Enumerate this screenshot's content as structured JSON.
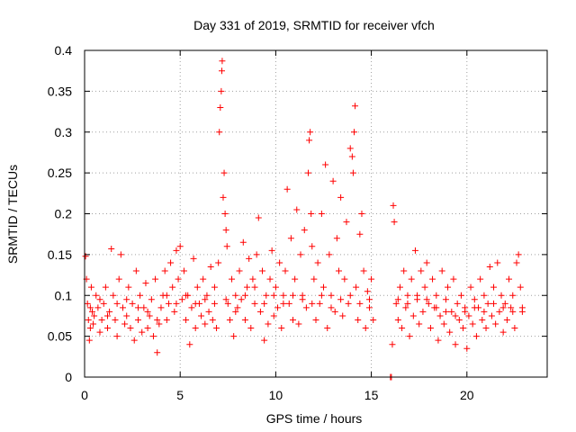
{
  "chart_data": {
    "type": "scatter",
    "title": "Day 331 of 2019, SRMTID for receiver vfch",
    "xlabel": "GPS time / hours",
    "ylabel": "SRMTID / TECUs",
    "xlim": [
      0,
      24.2
    ],
    "ylim": [
      0,
      0.4
    ],
    "x_ticks": [
      0,
      5,
      10,
      15,
      20
    ],
    "y_ticks": [
      0,
      0.05,
      0.1,
      0.15,
      0.2,
      0.25,
      0.3,
      0.35,
      0.4
    ],
    "x_tick_labels": [
      "0",
      "5",
      "10",
      "15",
      "20"
    ],
    "y_tick_labels": [
      "0",
      "0.05",
      "0.1",
      "0.15",
      "0.2",
      "0.25",
      "0.3",
      "0.35",
      "0.4"
    ],
    "grid": true,
    "marker": "+",
    "color": "#ff0000",
    "series": [
      {
        "points": [
          [
            0.05,
            0.148
          ],
          [
            0.1,
            0.12
          ],
          [
            0.15,
            0.09
          ],
          [
            0.2,
            0.07
          ],
          [
            0.25,
            0.045
          ],
          [
            0.3,
            0.06
          ],
          [
            0.35,
            0.11
          ],
          [
            0.4,
            0.08
          ],
          [
            0.45,
            0.065
          ],
          [
            0.5,
            0.075
          ],
          [
            0.6,
            0.1
          ],
          [
            0.7,
            0.085
          ],
          [
            0.8,
            0.055
          ],
          [
            0.9,
            0.07
          ],
          [
            1.0,
            0.09
          ],
          [
            1.1,
            0.11
          ],
          [
            1.2,
            0.06
          ],
          [
            1.3,
            0.08
          ],
          [
            1.4,
            0.157
          ],
          [
            1.5,
            0.1
          ],
          [
            1.6,
            0.07
          ],
          [
            1.7,
            0.05
          ],
          [
            1.8,
            0.12
          ],
          [
            1.9,
            0.15
          ],
          [
            2.0,
            0.085
          ],
          [
            2.1,
            0.065
          ],
          [
            2.2,
            0.075
          ],
          [
            2.3,
            0.11
          ],
          [
            2.4,
            0.06
          ],
          [
            2.5,
            0.09
          ],
          [
            2.6,
            0.045
          ],
          [
            2.7,
            0.13
          ],
          [
            2.8,
            0.07
          ],
          [
            2.9,
            0.1
          ],
          [
            3.0,
            0.055
          ],
          [
            3.1,
            0.085
          ],
          [
            3.2,
            0.115
          ],
          [
            3.3,
            0.06
          ],
          [
            3.4,
            0.075
          ],
          [
            3.5,
            0.095
          ],
          [
            3.6,
            0.05
          ],
          [
            3.7,
            0.12
          ],
          [
            3.8,
            0.03
          ],
          [
            3.9,
            0.065
          ],
          [
            4.0,
            0.085
          ],
          [
            4.1,
            0.1
          ],
          [
            4.2,
            0.13
          ],
          [
            4.3,
            0.07
          ],
          [
            4.4,
            0.09
          ],
          [
            4.5,
            0.14
          ],
          [
            4.6,
            0.11
          ],
          [
            4.7,
            0.08
          ],
          [
            4.8,
            0.155
          ],
          [
            4.9,
            0.12
          ],
          [
            5.0,
            0.16
          ],
          [
            5.1,
            0.095
          ],
          [
            5.2,
            0.13
          ],
          [
            5.3,
            0.07
          ],
          [
            5.4,
            0.1
          ],
          [
            5.5,
            0.04
          ],
          [
            5.6,
            0.085
          ],
          [
            5.7,
            0.145
          ],
          [
            5.8,
            0.06
          ],
          [
            5.9,
            0.11
          ],
          [
            6.0,
            0.09
          ],
          [
            6.1,
            0.075
          ],
          [
            6.2,
            0.12
          ],
          [
            6.3,
            0.065
          ],
          [
            6.4,
            0.1
          ],
          [
            6.5,
            0.08
          ],
          [
            6.6,
            0.135
          ],
          [
            6.7,
            0.07
          ],
          [
            6.8,
            0.11
          ],
          [
            6.9,
            0.06
          ],
          [
            7.0,
            0.14
          ],
          [
            7.05,
            0.3
          ],
          [
            7.1,
            0.33
          ],
          [
            7.15,
            0.35
          ],
          [
            7.18,
            0.375
          ],
          [
            7.2,
            0.387
          ],
          [
            7.25,
            0.22
          ],
          [
            7.3,
            0.25
          ],
          [
            7.35,
            0.2
          ],
          [
            7.4,
            0.18
          ],
          [
            7.45,
            0.16
          ],
          [
            7.5,
            0.09
          ],
          [
            7.6,
            0.07
          ],
          [
            7.7,
            0.12
          ],
          [
            7.8,
            0.05
          ],
          [
            7.9,
            0.1
          ],
          [
            8.0,
            0.085
          ],
          [
            8.1,
            0.13
          ],
          [
            8.2,
            0.095
          ],
          [
            8.3,
            0.165
          ],
          [
            8.4,
            0.07
          ],
          [
            8.5,
            0.11
          ],
          [
            8.6,
            0.145
          ],
          [
            8.7,
            0.06
          ],
          [
            8.8,
            0.12
          ],
          [
            8.9,
            0.09
          ],
          [
            9.0,
            0.15
          ],
          [
            9.1,
            0.195
          ],
          [
            9.2,
            0.08
          ],
          [
            9.3,
            0.13
          ],
          [
            9.4,
            0.045
          ],
          [
            9.5,
            0.1
          ],
          [
            9.6,
            0.065
          ],
          [
            9.7,
            0.12
          ],
          [
            9.8,
            0.155
          ],
          [
            9.9,
            0.075
          ],
          [
            10.0,
            0.11
          ],
          [
            10.1,
            0.085
          ],
          [
            10.2,
            0.14
          ],
          [
            10.3,
            0.06
          ],
          [
            10.4,
            0.1
          ],
          [
            10.5,
            0.13
          ],
          [
            10.6,
            0.23
          ],
          [
            10.7,
            0.09
          ],
          [
            10.8,
            0.17
          ],
          [
            10.9,
            0.07
          ],
          [
            11.0,
            0.12
          ],
          [
            11.1,
            0.205
          ],
          [
            11.2,
            0.065
          ],
          [
            11.3,
            0.15
          ],
          [
            11.4,
            0.1
          ],
          [
            11.5,
            0.18
          ],
          [
            11.6,
            0.085
          ],
          [
            11.7,
            0.25
          ],
          [
            11.75,
            0.29
          ],
          [
            11.8,
            0.3
          ],
          [
            11.85,
            0.2
          ],
          [
            11.9,
            0.16
          ],
          [
            12.0,
            0.12
          ],
          [
            12.1,
            0.07
          ],
          [
            12.2,
            0.14
          ],
          [
            12.3,
            0.09
          ],
          [
            12.4,
            0.2
          ],
          [
            12.5,
            0.11
          ],
          [
            12.6,
            0.26
          ],
          [
            12.7,
            0.06
          ],
          [
            12.8,
            0.15
          ],
          [
            12.9,
            0.1
          ],
          [
            13.0,
            0.24
          ],
          [
            13.1,
            0.08
          ],
          [
            13.2,
            0.17
          ],
          [
            13.3,
            0.13
          ],
          [
            13.4,
            0.22
          ],
          [
            13.5,
            0.075
          ],
          [
            13.6,
            0.12
          ],
          [
            13.7,
            0.19
          ],
          [
            13.8,
            0.09
          ],
          [
            13.9,
            0.28
          ],
          [
            14.0,
            0.27
          ],
          [
            14.05,
            0.25
          ],
          [
            14.1,
            0.3
          ],
          [
            14.15,
            0.332
          ],
          [
            14.2,
            0.11
          ],
          [
            14.3,
            0.07
          ],
          [
            14.4,
            0.175
          ],
          [
            14.5,
            0.2
          ],
          [
            14.6,
            0.13
          ],
          [
            14.7,
            0.06
          ],
          [
            14.8,
            0.105
          ],
          [
            14.9,
            0.085
          ],
          [
            15.0,
            0.12
          ],
          [
            15.1,
            0.07
          ],
          [
            16.0,
            0.0
          ],
          [
            16.05,
            0.0
          ],
          [
            16.1,
            0.04
          ],
          [
            16.15,
            0.21
          ],
          [
            16.2,
            0.19
          ],
          [
            16.3,
            0.09
          ],
          [
            16.4,
            0.07
          ],
          [
            16.5,
            0.11
          ],
          [
            16.6,
            0.06
          ],
          [
            16.7,
            0.13
          ],
          [
            16.8,
            0.085
          ],
          [
            16.9,
            0.1
          ],
          [
            17.0,
            0.05
          ],
          [
            17.1,
            0.12
          ],
          [
            17.2,
            0.075
          ],
          [
            17.3,
            0.155
          ],
          [
            17.4,
            0.095
          ],
          [
            17.5,
            0.065
          ],
          [
            17.6,
            0.13
          ],
          [
            17.7,
            0.08
          ],
          [
            17.8,
            0.11
          ],
          [
            17.9,
            0.14
          ],
          [
            18.0,
            0.09
          ],
          [
            18.1,
            0.06
          ],
          [
            18.2,
            0.12
          ],
          [
            18.3,
            0.085
          ],
          [
            18.4,
            0.1
          ],
          [
            18.5,
            0.045
          ],
          [
            18.6,
            0.075
          ],
          [
            18.7,
            0.13
          ],
          [
            18.8,
            0.065
          ],
          [
            18.9,
            0.095
          ],
          [
            19.0,
            0.11
          ],
          [
            19.1,
            0.055
          ],
          [
            19.2,
            0.08
          ],
          [
            19.3,
            0.12
          ],
          [
            19.4,
            0.04
          ],
          [
            19.5,
            0.09
          ],
          [
            19.6,
            0.07
          ],
          [
            19.7,
            0.1
          ],
          [
            19.8,
            0.06
          ],
          [
            19.9,
            0.085
          ],
          [
            20.0,
            0.035
          ],
          [
            20.1,
            0.075
          ],
          [
            20.2,
            0.11
          ],
          [
            20.3,
            0.065
          ],
          [
            20.4,
            0.095
          ],
          [
            20.5,
            0.05
          ],
          [
            20.6,
            0.085
          ],
          [
            20.7,
            0.12
          ],
          [
            20.8,
            0.07
          ],
          [
            20.9,
            0.1
          ],
          [
            21.0,
            0.06
          ],
          [
            21.1,
            0.09
          ],
          [
            21.2,
            0.135
          ],
          [
            21.3,
            0.075
          ],
          [
            21.4,
            0.11
          ],
          [
            21.5,
            0.065
          ],
          [
            21.6,
            0.14
          ],
          [
            21.7,
            0.08
          ],
          [
            21.8,
            0.1
          ],
          [
            21.9,
            0.055
          ],
          [
            22.0,
            0.09
          ],
          [
            22.1,
            0.07
          ],
          [
            22.2,
            0.12
          ],
          [
            22.3,
            0.085
          ],
          [
            22.4,
            0.1
          ],
          [
            22.5,
            0.06
          ],
          [
            22.6,
            0.14
          ],
          [
            22.7,
            0.15
          ],
          [
            22.8,
            0.11
          ],
          [
            22.9,
            0.08
          ],
          [
            0.3,
            0.085
          ],
          [
            0.8,
            0.095
          ],
          [
            1.2,
            0.075
          ],
          [
            1.7,
            0.09
          ],
          [
            2.2,
            0.095
          ],
          [
            2.8,
            0.085
          ],
          [
            3.3,
            0.08
          ],
          [
            3.8,
            0.07
          ],
          [
            4.3,
            0.1
          ],
          [
            4.8,
            0.09
          ],
          [
            5.3,
            0.1
          ],
          [
            5.8,
            0.09
          ],
          [
            6.3,
            0.095
          ],
          [
            6.8,
            0.09
          ],
          [
            7.4,
            0.095
          ],
          [
            7.9,
            0.08
          ],
          [
            8.4,
            0.1
          ],
          [
            8.9,
            0.11
          ],
          [
            9.4,
            0.09
          ],
          [
            9.9,
            0.1
          ],
          [
            10.4,
            0.09
          ],
          [
            10.9,
            0.1
          ],
          [
            11.4,
            0.095
          ],
          [
            11.9,
            0.09
          ],
          [
            12.4,
            0.1
          ],
          [
            12.9,
            0.085
          ],
          [
            13.4,
            0.095
          ],
          [
            13.9,
            0.1
          ],
          [
            14.4,
            0.09
          ],
          [
            14.9,
            0.095
          ],
          [
            16.4,
            0.095
          ],
          [
            16.9,
            0.09
          ],
          [
            17.4,
            0.1
          ],
          [
            17.9,
            0.095
          ],
          [
            18.4,
            0.085
          ],
          [
            18.9,
            0.08
          ],
          [
            19.4,
            0.075
          ],
          [
            19.9,
            0.08
          ],
          [
            20.4,
            0.085
          ],
          [
            20.9,
            0.08
          ],
          [
            21.4,
            0.09
          ],
          [
            21.9,
            0.085
          ],
          [
            22.4,
            0.08
          ],
          [
            22.9,
            0.085
          ]
        ]
      }
    ]
  }
}
